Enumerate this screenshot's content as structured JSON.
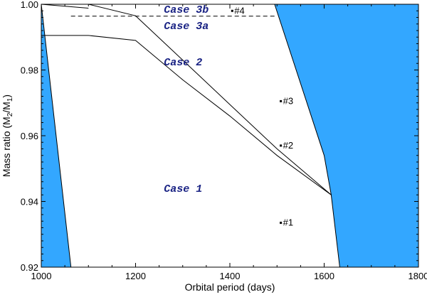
{
  "chart_data": {
    "type": "scatter",
    "title": "",
    "xlabel": "Orbital period (days)",
    "ylabel_parts": [
      "Mass ratio (M",
      "2",
      "/M",
      "1",
      ")"
    ],
    "xlim": [
      1000,
      1800
    ],
    "ylim": [
      0.92,
      1.0
    ],
    "x_ticks": [
      1000,
      1200,
      1400,
      1600,
      1800
    ],
    "x_tick_labels": [
      "1000",
      "1200",
      "1400",
      "1600",
      "1800"
    ],
    "y_ticks": [
      0.92,
      0.94,
      0.96,
      0.98,
      1.0
    ],
    "y_tick_labels": [
      "0.92",
      "0.94",
      "0.96",
      "0.98",
      "1.00"
    ],
    "grid": false,
    "colors": {
      "excluded_region": "#33a7ff",
      "case_label": "#1a2384",
      "line": "#000000"
    },
    "excluded_regions": [
      {
        "points": [
          [
            1000,
            1.0
          ],
          [
            1000,
            0.92
          ],
          [
            1063,
            0.92
          ]
        ]
      },
      {
        "points": [
          [
            1400,
            1.0
          ],
          [
            1800,
            1.0
          ],
          [
            1800,
            0.92
          ],
          [
            1633,
            0.92
          ],
          [
            1615,
            0.942
          ],
          [
            1600,
            0.954
          ],
          [
            1495,
            1.0
          ]
        ]
      }
    ],
    "boundary_lines": [
      {
        "points": [
          [
            1100,
            1.0
          ],
          [
            1200,
            0.9965
          ],
          [
            1300,
            0.983
          ],
          [
            1400,
            0.9695
          ],
          [
            1500,
            0.956
          ],
          [
            1615,
            0.942
          ]
        ]
      },
      {
        "points": [
          [
            1000,
            0.9905
          ],
          [
            1100,
            0.9905
          ],
          [
            1200,
            0.989
          ],
          [
            1300,
            0.977
          ],
          [
            1400,
            0.966
          ],
          [
            1500,
            0.954
          ],
          [
            1615,
            0.942
          ]
        ]
      },
      {
        "points": [
          [
            1000,
            1.0
          ],
          [
            1100,
            0.9988
          ]
        ]
      }
    ],
    "dashed_lines": [
      {
        "points": [
          [
            1063,
            0.9964
          ],
          [
            1495,
            0.9964
          ]
        ]
      }
    ],
    "regions": [
      {
        "label": "Case 3b",
        "x": 1260,
        "y": 0.9985
      },
      {
        "label": "Case 3a",
        "x": 1260,
        "y": 0.9935
      },
      {
        "label": "Case 2",
        "x": 1260,
        "y": 0.9825
      },
      {
        "label": "Case 1",
        "x": 1260,
        "y": 0.944
      }
    ],
    "points": [
      {
        "label": "#1",
        "x": 1508,
        "y": 0.9335
      },
      {
        "label": "#2",
        "x": 1508,
        "y": 0.957
      },
      {
        "label": "#3",
        "x": 1508,
        "y": 0.9705
      },
      {
        "label": "#4",
        "x": 1405,
        "y": 0.998
      }
    ]
  }
}
